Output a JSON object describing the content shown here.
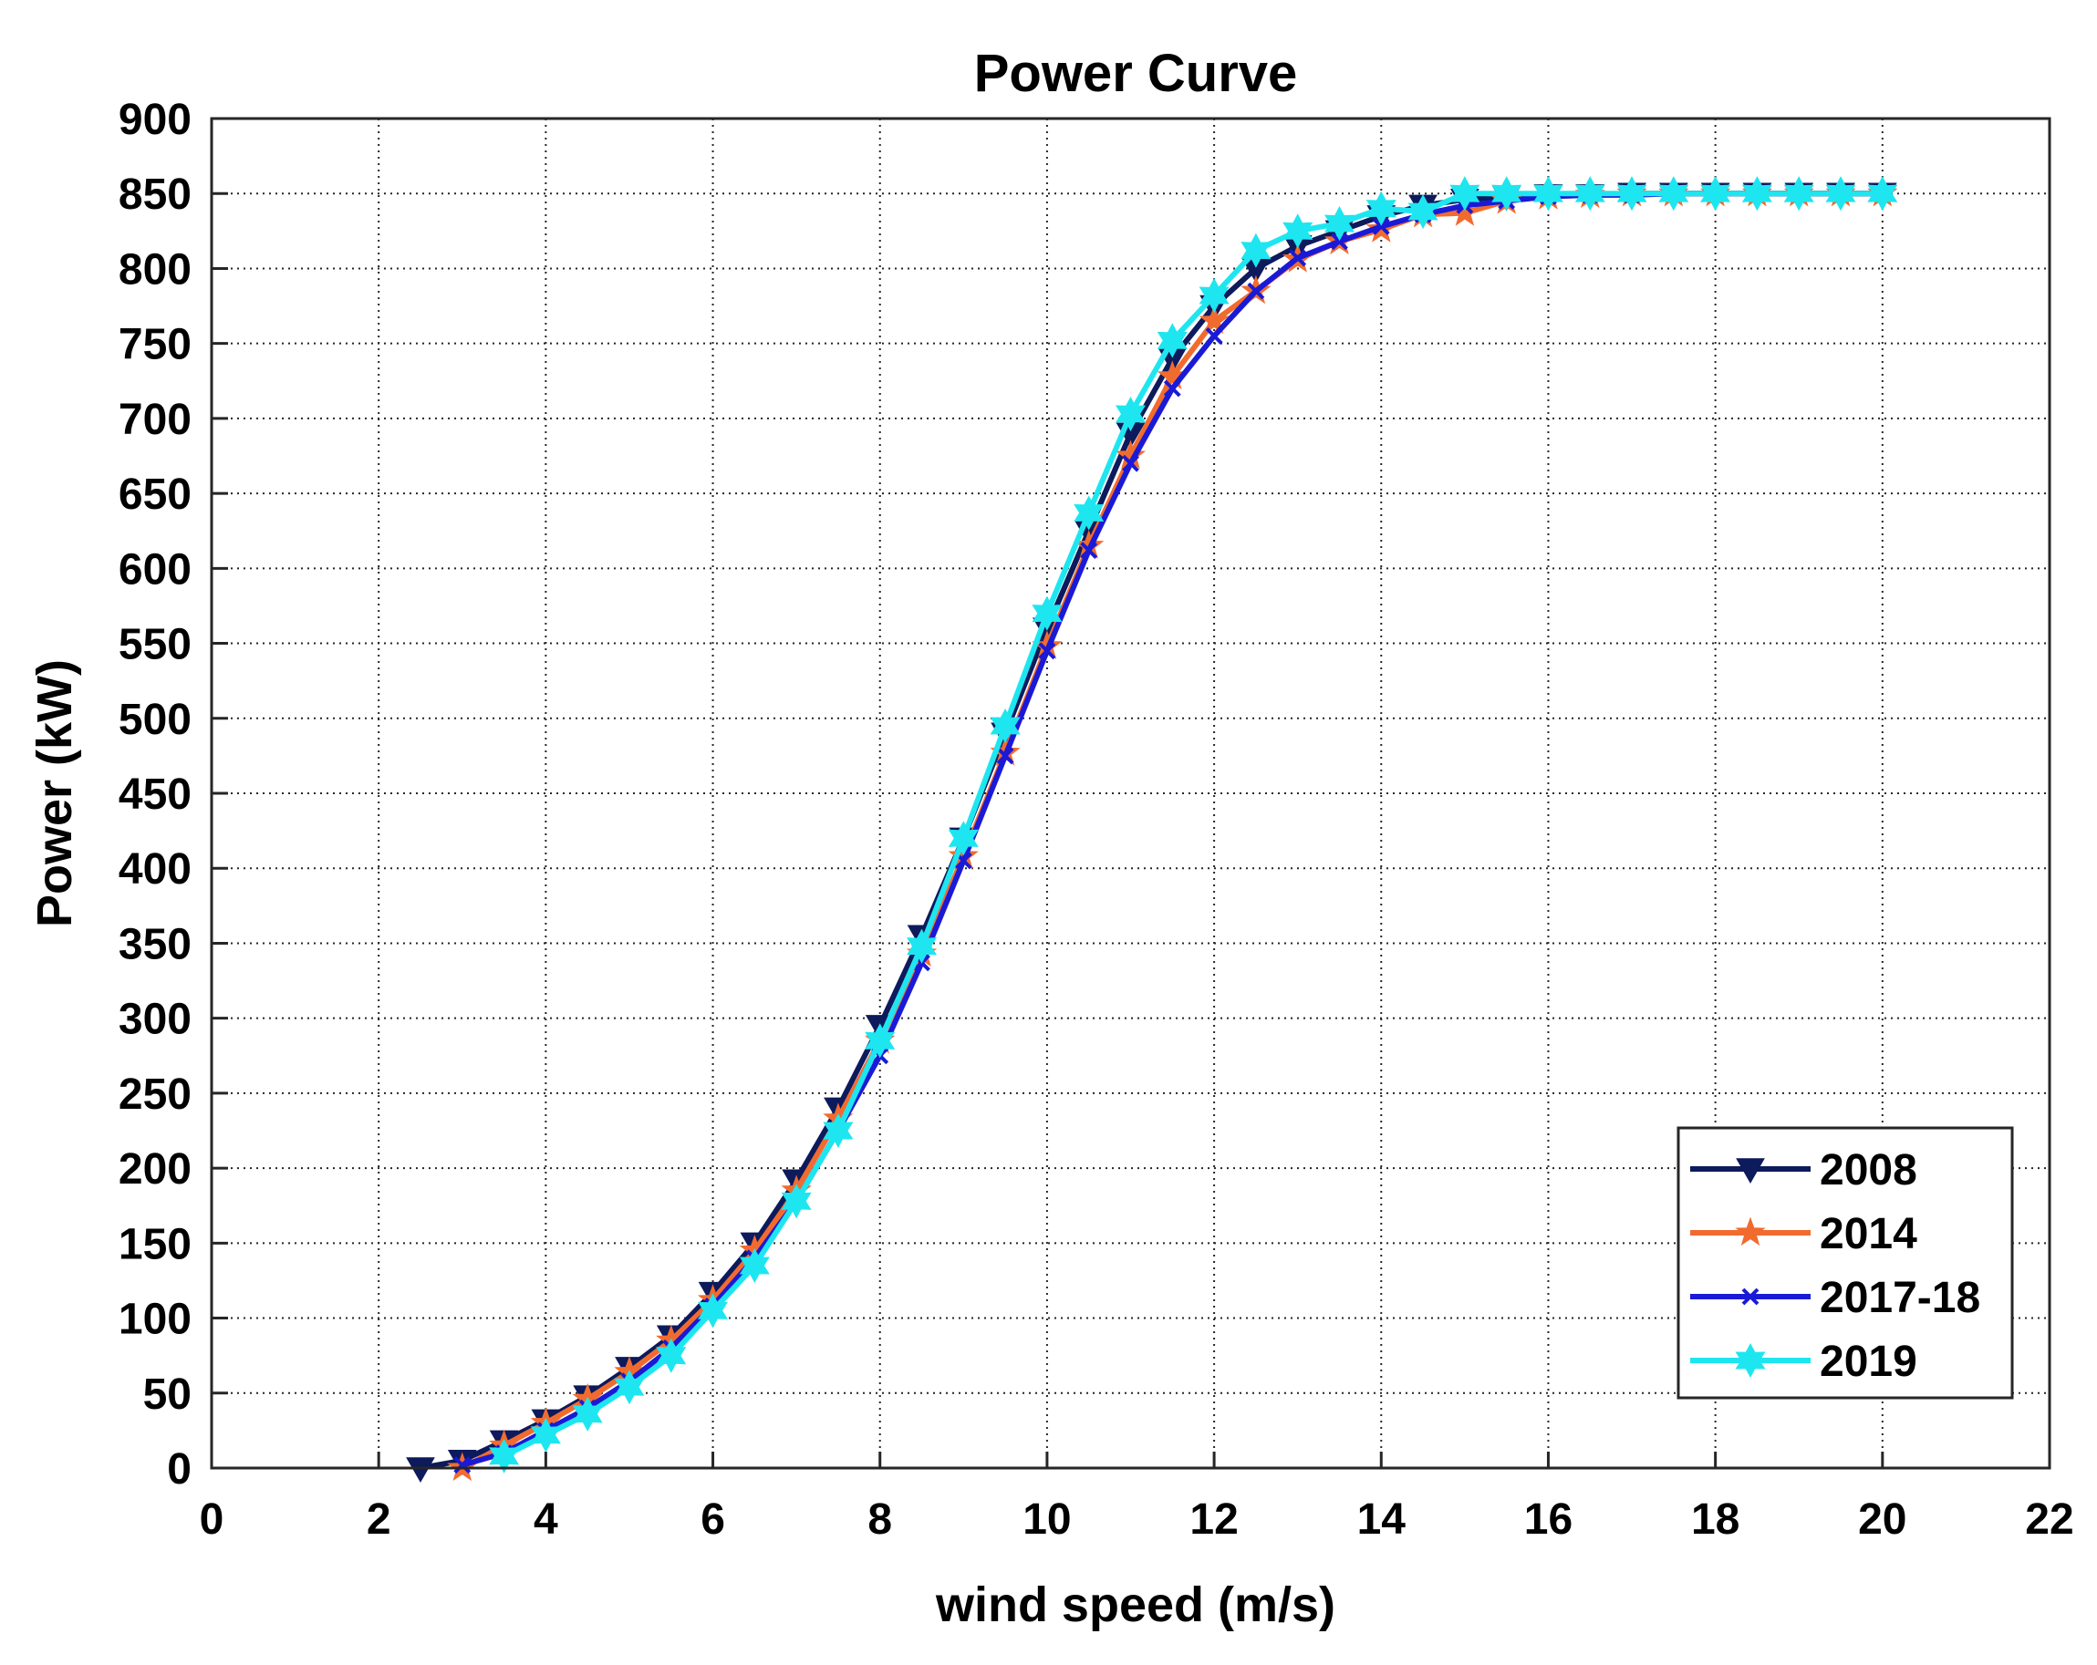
{
  "chart_data": {
    "type": "line",
    "title": "Power Curve",
    "xlabel": "wind speed (m/s)",
    "ylabel": "Power (kW)",
    "xlim": [
      0,
      22
    ],
    "ylim": [
      0,
      900
    ],
    "xticks": [
      0,
      2,
      4,
      6,
      8,
      10,
      12,
      14,
      16,
      18,
      20,
      22
    ],
    "yticks": [
      0,
      50,
      100,
      150,
      200,
      250,
      300,
      350,
      400,
      450,
      500,
      550,
      600,
      650,
      700,
      750,
      800,
      850,
      900
    ],
    "grid": true,
    "legend_position": "bottom-right",
    "series": [
      {
        "name": "2008",
        "color": "#0d1a5c",
        "marker": "triangle-down",
        "x": [
          2.5,
          3,
          3.5,
          4,
          4.5,
          5,
          5.5,
          6,
          6.5,
          7,
          7.5,
          8,
          8.5,
          9,
          9.5,
          10,
          10.5,
          11,
          11.5,
          12,
          12.5,
          13,
          13.5,
          14,
          14.5,
          15,
          15.5,
          16,
          16.5,
          17,
          17.5,
          18,
          18.5,
          19,
          19.5,
          20
        ],
        "y": [
          0,
          5,
          18,
          32,
          48,
          67,
          88,
          117,
          150,
          192,
          240,
          295,
          355,
          420,
          490,
          560,
          625,
          690,
          740,
          775,
          800,
          815,
          825,
          835,
          842,
          846,
          848,
          849,
          849,
          850,
          850,
          850,
          850,
          850,
          850,
          850
        ]
      },
      {
        "name": "2014",
        "color": "#f26b2e",
        "marker": "star",
        "x": [
          3,
          3.5,
          4,
          4.5,
          5,
          5.5,
          6,
          6.5,
          7,
          7.5,
          8,
          8.5,
          9,
          9.5,
          10,
          10.5,
          11,
          11.5,
          12,
          12.5,
          13,
          13.5,
          14,
          14.5,
          15,
          15.5,
          16,
          16.5,
          17,
          17.5,
          18,
          18.5,
          19,
          19.5,
          20
        ],
        "y": [
          0,
          15,
          30,
          46,
          64,
          85,
          112,
          145,
          185,
          233,
          285,
          343,
          408,
          477,
          548,
          615,
          675,
          728,
          765,
          785,
          806,
          818,
          826,
          836,
          837,
          845,
          848,
          849,
          850,
          850,
          850,
          850,
          850,
          850,
          850
        ]
      },
      {
        "name": "2017-18",
        "color": "#1a1ad6",
        "marker": "x",
        "x": [
          3,
          3.5,
          4,
          4.5,
          5,
          5.5,
          6,
          6.5,
          7,
          7.5,
          8,
          8.5,
          9,
          9.5,
          10,
          10.5,
          11,
          11.5,
          12,
          12.5,
          13,
          13.5,
          14,
          14.5,
          15,
          15.5,
          16,
          16.5,
          17,
          17.5,
          18,
          18.5,
          19,
          19.5,
          20
        ],
        "y": [
          2,
          10,
          25,
          40,
          58,
          80,
          108,
          140,
          178,
          225,
          275,
          337,
          405,
          475,
          545,
          612,
          670,
          720,
          755,
          785,
          807,
          818,
          828,
          836,
          842,
          845,
          848,
          849,
          849,
          850,
          850,
          850,
          850,
          850,
          850
        ]
      },
      {
        "name": "2019",
        "color": "#1ee6f0",
        "marker": "hexagram",
        "x": [
          3.5,
          4,
          4.5,
          5,
          5.5,
          6,
          6.5,
          7,
          7.5,
          8,
          8.5,
          9,
          9.5,
          10,
          10.5,
          11,
          11.5,
          12,
          12.5,
          13,
          13.5,
          14,
          14.5,
          15,
          15.5,
          16,
          16.5,
          17,
          17.5,
          18,
          18.5,
          19,
          19.5,
          20
        ],
        "y": [
          8,
          22,
          36,
          54,
          75,
          105,
          135,
          178,
          225,
          285,
          348,
          420,
          495,
          570,
          637,
          703,
          752,
          782,
          812,
          825,
          830,
          840,
          838,
          850,
          850,
          850,
          850,
          850,
          850,
          850,
          850,
          850,
          850,
          850
        ]
      }
    ]
  }
}
